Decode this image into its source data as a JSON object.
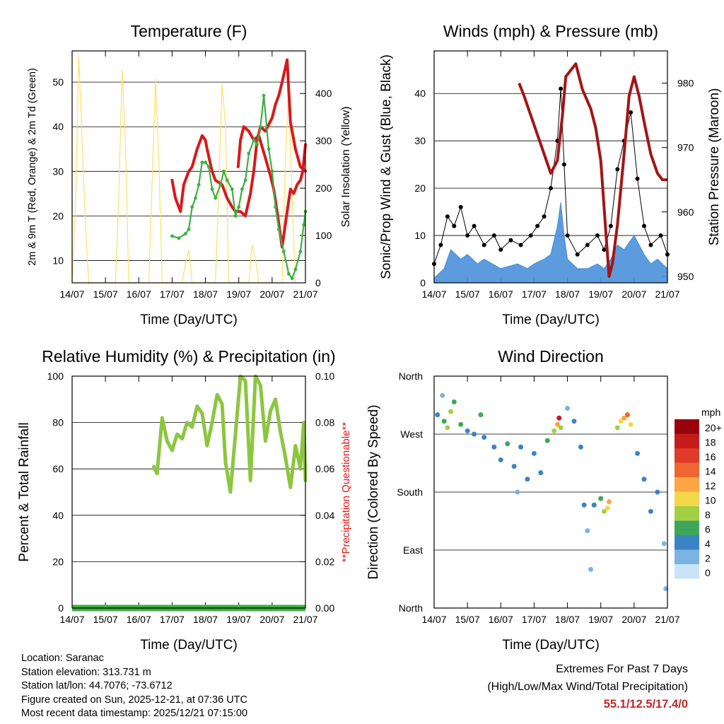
{
  "time_ticks": [
    "14/07",
    "15/07",
    "16/07",
    "17/07",
    "18/07",
    "19/07",
    "20/07",
    "21/07"
  ],
  "time_axis_label": "Time (Day/UTC)",
  "colors": {
    "temp_2m": "#d7191c",
    "temp_9m": "#f28c28",
    "dewpoint": "#3cb043",
    "solar": "#ffe066",
    "wind": "#4a90d9",
    "gust": "#000000",
    "pressure": "#a31515",
    "humidity": "#8cc63f",
    "precip": "#3cb043",
    "questionable": "#e31a1c",
    "extremes": "#c0272d"
  },
  "chart_data": [
    {
      "id": "temperature",
      "type": "line",
      "title": "Temperature (F)",
      "xlabel": "Time (Day/UTC)",
      "ylabel": "2m & 9m T (Red, Orange) & 2m Td (Green)",
      "ylabel_right": "Solar Insolation (Yellow)",
      "xlim": [
        0,
        7
      ],
      "ylim": [
        5,
        57
      ],
      "yticks": [
        10,
        20,
        30,
        40,
        50
      ],
      "ylim_right": [
        0,
        490
      ],
      "yticks_right": [
        0,
        100,
        200,
        300,
        400
      ],
      "series": [
        {
          "name": "2m T",
          "color": "#d7191c",
          "x": [
            3.0,
            3.1,
            3.25,
            3.35,
            3.5,
            3.6,
            3.75,
            3.9,
            4.0,
            4.05,
            4.2,
            4.3,
            4.5,
            4.65,
            4.8,
            4.9,
            4.97,
            5.05,
            5.2,
            5.35,
            5.45,
            5.55,
            5.65,
            5.8,
            6.0,
            6.1,
            6.2,
            6.3,
            6.45,
            6.55,
            6.7,
            6.85,
            7.0
          ],
          "values": [
            28,
            24,
            21,
            27,
            30,
            31,
            35,
            38,
            37,
            35,
            30,
            28,
            27,
            24,
            22,
            21,
            21,
            21,
            20,
            25,
            30,
            37,
            40,
            39,
            42,
            45,
            47,
            50,
            55,
            41,
            35,
            31,
            30
          ]
        },
        {
          "name": "2m T (b)",
          "color": "#d7191c",
          "x": [
            4.98,
            5.05,
            5.15,
            5.3,
            5.45,
            5.6,
            5.8,
            5.95,
            6.05,
            6.15,
            6.3,
            6.45,
            6.55,
            6.65,
            6.75,
            6.85,
            6.92,
            7.0
          ],
          "values": [
            31,
            37,
            40,
            39,
            37,
            38,
            33,
            29,
            26,
            21,
            13,
            21,
            26,
            25,
            27,
            28,
            30,
            36
          ]
        },
        {
          "name": "2m Td",
          "color": "#3cb043",
          "x": [
            3.0,
            3.2,
            3.4,
            3.5,
            3.6,
            3.7,
            3.8,
            3.9,
            4.0,
            4.1,
            4.2,
            4.3,
            4.45,
            4.55,
            4.65,
            4.8,
            4.9,
            5.0,
            5.1,
            5.2,
            5.3,
            5.45,
            5.55,
            5.65,
            5.75,
            5.9,
            6.0,
            6.1,
            6.2,
            6.35,
            6.5,
            6.6,
            6.7,
            6.85,
            6.95,
            7.0
          ],
          "values": [
            15.5,
            15,
            16,
            17,
            22,
            24,
            27,
            32,
            32,
            31,
            26,
            24,
            27,
            30,
            28,
            26,
            20,
            22,
            26,
            28,
            34,
            37,
            36,
            40,
            47,
            35,
            30,
            22,
            17,
            12,
            7,
            6,
            8,
            12,
            18,
            21
          ]
        },
        {
          "name": "Solar Insolation",
          "color": "#ffe066",
          "axis": "right",
          "x": [
            0.0,
            0.1,
            0.2,
            0.3,
            0.4,
            0.5,
            0.6,
            0.7,
            1.3,
            1.4,
            1.5,
            1.6,
            1.7,
            2.3,
            2.4,
            2.5,
            2.6,
            2.7,
            3.3,
            3.4,
            3.5,
            3.6,
            4.3,
            4.4,
            4.5,
            4.6,
            4.7,
            5.3,
            5.4,
            5.5,
            5.6,
            6.3,
            6.4,
            6.5,
            6.6,
            6.7
          ],
          "values": [
            0,
            160,
            480,
            300,
            120,
            0,
            0,
            0,
            0,
            180,
            450,
            300,
            0,
            0,
            210,
            430,
            260,
            0,
            0,
            40,
            70,
            0,
            0,
            200,
            420,
            330,
            0,
            0,
            80,
            50,
            0,
            0,
            260,
            420,
            180,
            0
          ]
        }
      ]
    },
    {
      "id": "winds",
      "type": "scatter",
      "title": "Winds (mph) & Pressure (mb)",
      "xlabel": "Time (Day/UTC)",
      "ylabel": "Sonic/Prop Wind & Gust (Blue, Black)",
      "ylabel_right": "Station Pressure (Maroon)",
      "xlim": [
        0,
        7
      ],
      "ylim": [
        0,
        49
      ],
      "yticks": [
        0,
        10,
        20,
        30,
        40
      ],
      "ylim_right": [
        949,
        985
      ],
      "yticks_right": [
        950,
        960,
        970,
        980
      ],
      "series": [
        {
          "name": "Wind",
          "color": "#4a90d9",
          "x": [
            0.0,
            0.3,
            0.5,
            0.8,
            1.0,
            1.3,
            1.5,
            2.0,
            2.5,
            2.8,
            3.0,
            3.3,
            3.5,
            3.7,
            3.8,
            3.9,
            4.0,
            4.3,
            4.6,
            4.9,
            5.1,
            5.3,
            5.5,
            5.7,
            6.0,
            6.3,
            6.5,
            6.7,
            7.0
          ],
          "values": [
            1,
            3,
            7,
            5,
            6,
            4,
            5,
            3,
            4,
            3,
            4,
            5,
            6,
            12,
            17,
            10,
            5,
            3,
            3,
            4,
            3,
            5,
            8,
            7,
            10,
            6,
            4,
            5,
            3
          ]
        },
        {
          "name": "Gust",
          "color": "#000000",
          "x": [
            0.0,
            0.2,
            0.4,
            0.6,
            0.8,
            1.0,
            1.2,
            1.5,
            1.8,
            2.0,
            2.3,
            2.6,
            2.9,
            3.1,
            3.3,
            3.5,
            3.7,
            3.8,
            3.9,
            4.0,
            4.3,
            4.6,
            4.9,
            5.1,
            5.3,
            5.5,
            5.7,
            5.9,
            6.1,
            6.3,
            6.5,
            6.8,
            7.0
          ],
          "values": [
            4,
            8,
            14,
            12,
            16,
            10,
            12,
            8,
            10,
            7,
            9,
            8,
            10,
            12,
            14,
            20,
            30,
            41,
            25,
            10,
            6,
            8,
            10,
            7,
            12,
            24,
            30,
            36,
            22,
            12,
            8,
            10,
            6
          ]
        },
        {
          "name": "Station Pressure",
          "color": "#a31515",
          "axis": "right",
          "x": [
            2.55,
            2.7,
            2.9,
            3.1,
            3.3,
            3.5,
            3.7,
            3.85,
            3.95,
            4.25,
            4.45,
            4.7,
            4.85,
            5.0,
            5.15,
            5.25,
            5.35,
            5.5,
            5.7,
            5.85,
            6.0,
            6.15,
            6.3,
            6.5,
            6.7,
            6.85,
            7.0
          ],
          "values": [
            980,
            978,
            975,
            972,
            969,
            966,
            968,
            975,
            981,
            983,
            979,
            976,
            973,
            968,
            957,
            950,
            952,
            958,
            969,
            978,
            981,
            978,
            974,
            969,
            966,
            965,
            965
          ]
        }
      ]
    },
    {
      "id": "humidity",
      "type": "line",
      "title": "Relative Humidity (%) & Precipitation (in)",
      "xlabel": "Time (Day/UTC)",
      "ylabel": "Percent & Total Rainfall",
      "ylabel_right": "**Precipitation Questionable**",
      "xlim": [
        0,
        7
      ],
      "ylim": [
        0,
        100
      ],
      "yticks": [
        0,
        20,
        40,
        60,
        80,
        100
      ],
      "ylim_right": [
        0,
        0.1
      ],
      "yticks_right": [
        "0.00",
        "0.02",
        "0.04",
        "0.06",
        "0.08",
        "0.10"
      ],
      "series": [
        {
          "name": "Relative Humidity",
          "color": "#8cc63f",
          "x": [
            2.45,
            2.55,
            2.7,
            2.85,
            3.0,
            3.15,
            3.3,
            3.45,
            3.6,
            3.75,
            3.9,
            4.05,
            4.2,
            4.35,
            4.5,
            4.6,
            4.75,
            4.9,
            5.05,
            5.2,
            5.35,
            5.5,
            5.65,
            5.8,
            5.95,
            6.1,
            6.25,
            6.4,
            6.55,
            6.7,
            6.85,
            6.95,
            7.0
          ],
          "values": [
            61,
            58,
            82,
            72,
            68,
            75,
            73,
            80,
            78,
            87,
            84,
            70,
            80,
            92,
            88,
            63,
            50,
            75,
            100,
            98,
            55,
            100,
            96,
            72,
            85,
            90,
            76,
            65,
            52,
            70,
            60,
            80,
            55
          ]
        },
        {
          "name": "Total Precipitation",
          "color": "#3cb043",
          "axis": "right",
          "x": [
            0.0,
            7.0
          ],
          "values": [
            0.0,
            0.0
          ]
        }
      ]
    },
    {
      "id": "direction",
      "type": "scatter",
      "title": "Wind Direction",
      "xlabel": "Time (Day/UTC)",
      "ylabel": "Direction (Colored By Speed)",
      "xlim": [
        0,
        7
      ],
      "ylim": [
        0,
        360
      ],
      "ytick_labels": [
        "North",
        "East",
        "South",
        "West",
        "North"
      ],
      "colorbar_title": "mph",
      "colorbar_labels": [
        "20+",
        "18",
        "16",
        "14",
        "12",
        "10",
        "8",
        "6",
        "4",
        "2",
        "0"
      ],
      "colorbar_colors": [
        "#99000d",
        "#c51b1b",
        "#e03a2a",
        "#f06630",
        "#fba543",
        "#f3d84a",
        "#a3cf46",
        "#3ea65a",
        "#3a84c6",
        "#7ab4e1",
        "#c9e4f6"
      ],
      "points": [
        {
          "x": 0.1,
          "y": 300,
          "s": 3
        },
        {
          "x": 0.25,
          "y": 330,
          "s": 2
        },
        {
          "x": 0.3,
          "y": 290,
          "s": 5
        },
        {
          "x": 0.4,
          "y": 280,
          "s": 7
        },
        {
          "x": 0.5,
          "y": 305,
          "s": 8
        },
        {
          "x": 0.6,
          "y": 320,
          "s": 6
        },
        {
          "x": 0.8,
          "y": 285,
          "s": 5
        },
        {
          "x": 1.0,
          "y": 275,
          "s": 4
        },
        {
          "x": 1.2,
          "y": 270,
          "s": 4
        },
        {
          "x": 1.4,
          "y": 300,
          "s": 6
        },
        {
          "x": 1.5,
          "y": 265,
          "s": 3
        },
        {
          "x": 1.8,
          "y": 250,
          "s": 4
        },
        {
          "x": 2.0,
          "y": 230,
          "s": 3
        },
        {
          "x": 2.2,
          "y": 255,
          "s": 5
        },
        {
          "x": 2.4,
          "y": 220,
          "s": 3
        },
        {
          "x": 2.5,
          "y": 180,
          "s": 2
        },
        {
          "x": 2.6,
          "y": 250,
          "s": 4
        },
        {
          "x": 2.8,
          "y": 200,
          "s": 3
        },
        {
          "x": 3.0,
          "y": 240,
          "s": 4
        },
        {
          "x": 3.2,
          "y": 210,
          "s": 3
        },
        {
          "x": 3.4,
          "y": 260,
          "s": 5
        },
        {
          "x": 3.6,
          "y": 275,
          "s": 8
        },
        {
          "x": 3.7,
          "y": 285,
          "s": 12
        },
        {
          "x": 3.75,
          "y": 295,
          "s": 18
        },
        {
          "x": 3.8,
          "y": 280,
          "s": 8
        },
        {
          "x": 4.0,
          "y": 310,
          "s": 2
        },
        {
          "x": 4.2,
          "y": 290,
          "s": 3
        },
        {
          "x": 4.4,
          "y": 250,
          "s": 4
        },
        {
          "x": 4.5,
          "y": 160,
          "s": 3
        },
        {
          "x": 4.6,
          "y": 120,
          "s": 2
        },
        {
          "x": 4.7,
          "y": 60,
          "s": 2
        },
        {
          "x": 4.8,
          "y": 160,
          "s": 4
        },
        {
          "x": 5.0,
          "y": 170,
          "s": 5
        },
        {
          "x": 5.1,
          "y": 150,
          "s": 7
        },
        {
          "x": 5.2,
          "y": 155,
          "s": 10
        },
        {
          "x": 5.25,
          "y": 165,
          "s": 12
        },
        {
          "x": 5.5,
          "y": 280,
          "s": 7
        },
        {
          "x": 5.6,
          "y": 290,
          "s": 10
        },
        {
          "x": 5.7,
          "y": 295,
          "s": 12
        },
        {
          "x": 5.8,
          "y": 300,
          "s": 14
        },
        {
          "x": 5.9,
          "y": 285,
          "s": 9
        },
        {
          "x": 6.1,
          "y": 240,
          "s": 4
        },
        {
          "x": 6.3,
          "y": 200,
          "s": 3
        },
        {
          "x": 6.5,
          "y": 150,
          "s": 3
        },
        {
          "x": 6.7,
          "y": 180,
          "s": 4
        },
        {
          "x": 6.9,
          "y": 100,
          "s": 2
        },
        {
          "x": 6.95,
          "y": 30,
          "s": 1
        }
      ]
    }
  ],
  "meta": {
    "location": "Location: Saranac",
    "elevation": "Station elevation: 313.731 m",
    "latlon": "Station lat/lon: 44.7076; -73.6712",
    "created": "Figure created on Sun, 2025-12-21, at 07:36 UTC",
    "recent": "Most recent data timestamp: 2025/12/21 07:15:00"
  },
  "extremes": {
    "title": "Extremes For Past 7 Days",
    "subtitle": "(High/Low/Max Wind/Total Precipitation)",
    "values": "55.1/12.5/17.4/0"
  }
}
